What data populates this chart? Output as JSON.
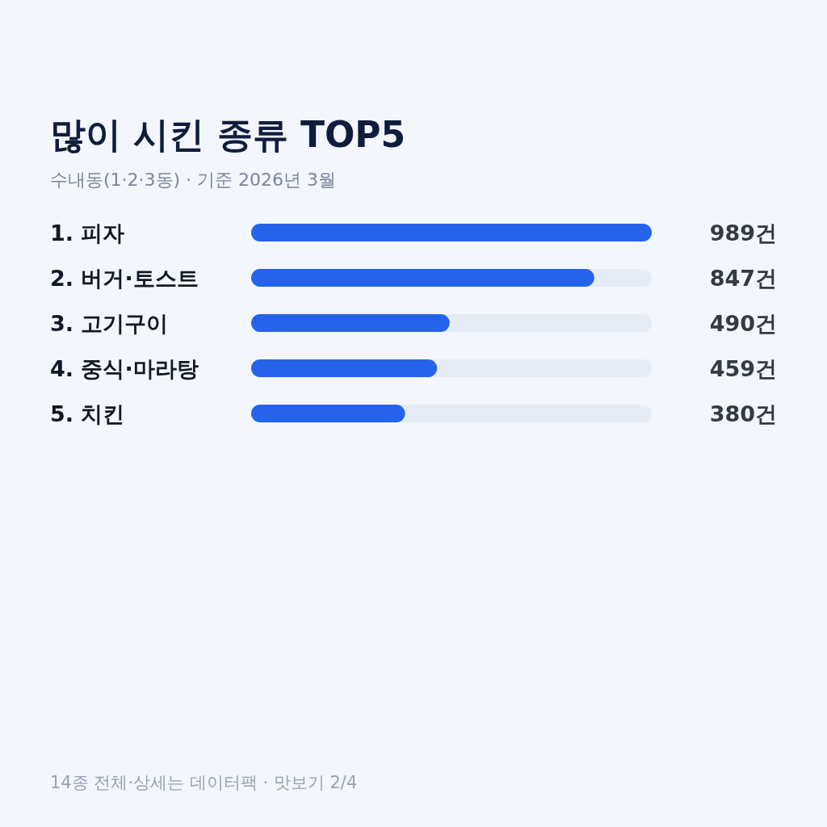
{
  "chart_data": {
    "type": "bar",
    "orientation": "horizontal",
    "title": "많이 시킨 종류 TOP5",
    "subtitle": "수내동(1·2·3동) · 기준 2026년 3월",
    "categories": [
      "1. 피자",
      "2. 버거·토스트",
      "3. 고기구이",
      "4. 중식·마라탕",
      "5. 치킨"
    ],
    "values": [
      989,
      847,
      490,
      459,
      380
    ],
    "value_labels": [
      "989건",
      "847건",
      "490건",
      "459건",
      "380건"
    ],
    "color": "#2563eb",
    "annotations": [
      "14종 전체·상세는 데이터팩 · 맛보기 2/4"
    ]
  }
}
